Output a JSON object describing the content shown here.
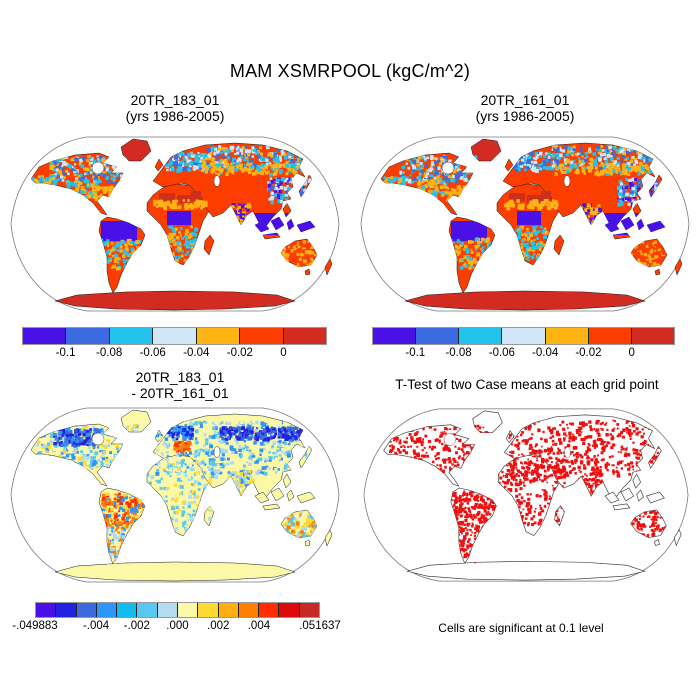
{
  "header": {
    "title": "MAM XSMRPOOL (kgC/m^2)"
  },
  "panels": {
    "tl": {
      "line1": "20TR_183_01",
      "line2": "(yrs 1986-2005)"
    },
    "tr": {
      "line1": "20TR_161_01",
      "line2": "(yrs 1986-2005)"
    },
    "bl": {
      "line1": "20TR_183_01",
      "line2": "- 20TR_161_01"
    },
    "br": {
      "title": "T-Test of two Case means at each grid point",
      "caption": "Cells are significant at 0.1 level"
    }
  },
  "colorbars": {
    "mean": {
      "colors": [
        "#4A10E8",
        "#3A6BE0",
        "#22C4EE",
        "#CFE7F6",
        "#FFB414",
        "#FC3D00",
        "#D22B22"
      ],
      "ticks": [
        "-0.1",
        "-0.08",
        "-0.06",
        "-0.04",
        "-0.02",
        "0"
      ]
    },
    "diff": {
      "colors": [
        "#4A10E8",
        "#2222E0",
        "#3D6BDE",
        "#2E96F8",
        "#12BBF0",
        "#58C8F0",
        "#B4DCF0",
        "#FBF8A8",
        "#FFD830",
        "#FFAD0F",
        "#FF8000",
        "#FF2D00",
        "#DD0A0A",
        "#C62A24"
      ],
      "ticks": [
        {
          "label": "-.049883",
          "pos": 0
        },
        {
          "label": "-.004",
          "pos": 3
        },
        {
          "label": "-.002",
          "pos": 5
        },
        {
          "label": ".000",
          "pos": 7
        },
        {
          "label": ".002",
          "pos": 9
        },
        {
          "label": ".004",
          "pos": 11
        },
        {
          "label": ".051637",
          "pos": 14
        }
      ]
    }
  },
  "ttest": {
    "significant_color": "#EE1111",
    "outline_color": "#444444"
  },
  "chart_data": [
    {
      "type": "heatmap",
      "panel": "top-left",
      "title": "20TR_183_01 (yrs 1986-2005)",
      "variable": "MAM XSMRPOOL",
      "units": "kgC/m^2",
      "projection": "robinson-world-map",
      "colorbar_tick_values": [
        -0.1,
        -0.08,
        -0.06,
        -0.04,
        -0.02,
        0
      ],
      "colorbar_colors": [
        "#4A10E8",
        "#3A6BE0",
        "#22C4EE",
        "#CFE7F6",
        "#FFB414",
        "#FC3D00",
        "#D22B22"
      ],
      "pattern_notes": "Most land orange-red (near 0 to -0.02); tropical forests (Amazon, Congo, SE Asia/Indonesia) deep blue-violet (< -0.1); cyan/pale-blue and amber mottling across boreal North America, Scandinavia, Siberia and East Asia; Sahara/Arabia darker red patches; Greenland and Antarctica solid dark red; ocean white."
    },
    {
      "type": "heatmap",
      "panel": "top-right",
      "title": "20TR_161_01 (yrs 1986-2005)",
      "variable": "MAM XSMRPOOL",
      "units": "kgC/m^2",
      "projection": "robinson-world-map",
      "colorbar_tick_values": [
        -0.1,
        -0.08,
        -0.06,
        -0.04,
        -0.02,
        0
      ],
      "colorbar_colors": [
        "#4A10E8",
        "#3A6BE0",
        "#22C4EE",
        "#CFE7F6",
        "#FFB414",
        "#FC3D00",
        "#D22B22"
      ],
      "pattern_notes": "Nearly identical spatial pattern to top-left panel."
    },
    {
      "type": "heatmap",
      "panel": "bottom-left",
      "title": "20TR_183_01 - 20TR_161_01",
      "projection": "robinson-world-map",
      "colorbar_tick_labels": [
        "-.049883",
        "-.004",
        "-.002",
        ".000",
        ".002",
        ".004",
        ".051637"
      ],
      "colorbar_range": [
        -0.049883,
        0.051637
      ],
      "colorbar_colors": [
        "#4A10E8",
        "#2222E0",
        "#3D6BDE",
        "#2E96F8",
        "#12BBF0",
        "#58C8F0",
        "#B4DCF0",
        "#FBF8A8",
        "#FFD830",
        "#FFAD0F",
        "#FF8000",
        "#FF2D00",
        "#DD0A0A",
        "#C62A24"
      ],
      "pattern_notes": "Differences near zero (pale yellow) over most land incl. Antarctica; dark-blue negative bands over NW Canada, Scandinavia and central Siberia; light-blue mottling across mid-latitudes; strong orange/red positive patch over eastern Brazil/Amazon; scattered orange/red cells elsewhere; ocean white."
    },
    {
      "type": "heatmap",
      "panel": "bottom-right",
      "title": "T-Test of two Case means at each grid point",
      "caption": "Cells are significant at 0.1 level",
      "projection": "robinson-world-map",
      "significant_color": "#EE1111",
      "pattern_notes": "Land shown as thin dark outlines on white; red cells mark grid points significant at the 0.1 level; dense over Amazon, tropical Africa, boreal Eurasia, eastern North America; sparse over Australia and Antarctica."
    }
  ]
}
